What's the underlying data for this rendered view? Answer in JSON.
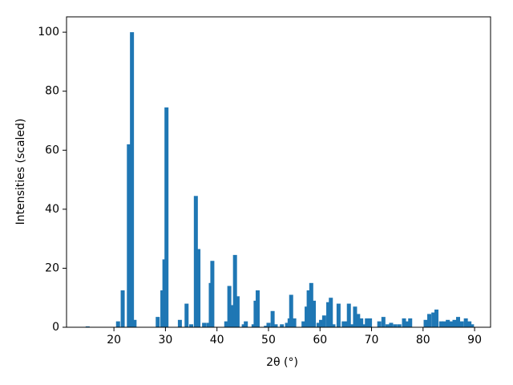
{
  "chart_data": {
    "type": "bar",
    "xlabel": "2θ (°)",
    "ylabel": "Intensities (scaled)",
    "x": [
      14.9,
      20.8,
      21.7,
      22.9,
      23.5,
      24.0,
      28.5,
      29.4,
      29.8,
      30.2,
      32.8,
      34.1,
      35.0,
      35.9,
      36.4,
      37.5,
      38.3,
      38.8,
      39.1,
      41.8,
      42.4,
      42.9,
      43.5,
      44.0,
      45.2,
      45.6,
      47.1,
      47.5,
      47.9,
      49.5,
      50.0,
      50.8,
      51.4,
      52.6,
      53.6,
      54.1,
      54.4,
      55.0,
      56.8,
      57.4,
      57.8,
      58.3,
      58.8,
      59.7,
      60.2,
      60.8,
      61.6,
      62.1,
      62.6,
      63.6,
      64.6,
      65.3,
      65.6,
      66.2,
      66.8,
      67.4,
      68.0,
      68.6,
      69.1,
      69.7,
      71.5,
      72.3,
      73.1,
      73.8,
      74.6,
      75.4,
      76.3,
      77.0,
      77.5,
      80.5,
      81.2,
      82.0,
      82.6,
      83.5,
      84.1,
      84.8,
      85.4,
      86.1,
      86.8,
      87.5,
      88.3,
      89.0,
      89.5
    ],
    "values": [
      0.3,
      2,
      12.5,
      62,
      100,
      2.5,
      3.5,
      12.5,
      23,
      74.5,
      2.5,
      8,
      1,
      44.5,
      26.5,
      1.5,
      1.5,
      15,
      22.5,
      2,
      14,
      7.5,
      24.5,
      10.5,
      1,
      2,
      1,
      9,
      12.5,
      0.5,
      1.5,
      5.5,
      1,
      1,
      1.5,
      3,
      11,
      3,
      2,
      7,
      12.5,
      15,
      9,
      1.5,
      2.5,
      4,
      8.5,
      10,
      1,
      8,
      2,
      2,
      8,
      1,
      7,
      4.5,
      3,
      1,
      3,
      3,
      2,
      3.5,
      1,
      1.5,
      1,
      1,
      3,
      2,
      3,
      2.5,
      4.5,
      5,
      6,
      2,
      2,
      2.5,
      2,
      2.5,
      3.5,
      2,
      3,
      2,
      1
    ],
    "color": "#1f77b4",
    "xlim": [
      10.8,
      93.1
    ],
    "ylim": [
      0,
      105.2
    ],
    "xticks": [
      20,
      30,
      40,
      50,
      60,
      70,
      80,
      90
    ],
    "yticks": [
      0,
      20,
      40,
      60,
      80,
      100
    ]
  }
}
